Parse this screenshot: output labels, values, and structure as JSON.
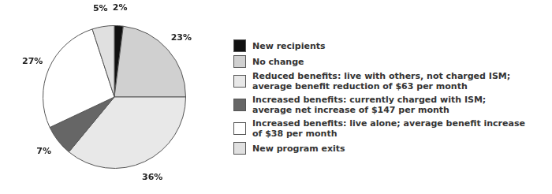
{
  "chart_data": {
    "type": "pie",
    "categories": [
      "New recipients",
      "No change",
      "Reduced benefits: live with others, not charged ISM;\naverage benefit reduction of $63 per month",
      "Increased benefits: currently charged with ISM;\naverage net increase of $147 per month",
      "Increased benefits: live alone; average benefit increase\nof $38 per month",
      "New program exits"
    ],
    "values": [
      2,
      23,
      36,
      7,
      27,
      5
    ],
    "value_labels": [
      "2%",
      "23%",
      "36%",
      "7%",
      "27%",
      "5%"
    ],
    "colors": [
      "#111111",
      "#d0d0d0",
      "#e8e8e8",
      "#666666",
      "#ffffff",
      "#e0e0e0"
    ],
    "data_labels": true,
    "legend": "right"
  }
}
